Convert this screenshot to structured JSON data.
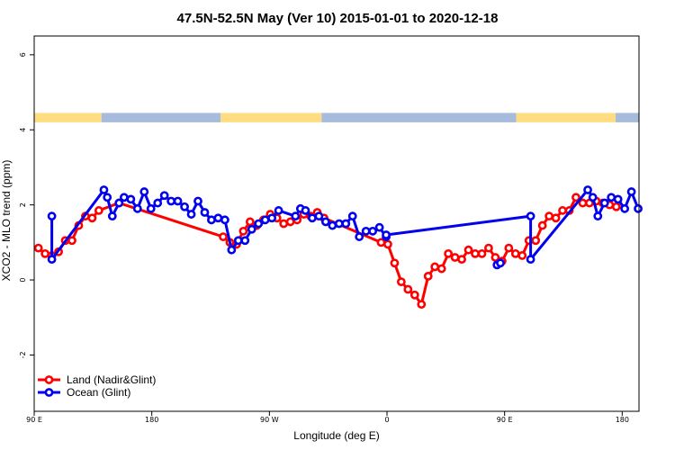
{
  "chart_data": {
    "type": "line",
    "title": "47.5N-52.5N May (Ver 10)   2015-01-01 to 2020-12-18",
    "xlabel": "Longitude (deg E)",
    "ylabel": "XCO2 - MLO trend (ppm)",
    "xlim": [
      90,
      450
    ],
    "ylim": [
      -3.5,
      6.5
    ],
    "x_ticks": [
      {
        "value": 90,
        "label": "90 E"
      },
      {
        "value": 160,
        "label": "180"
      },
      {
        "value": 230,
        "label": "90 W"
      },
      {
        "value": 300,
        "label": "0"
      },
      {
        "value": 370,
        "label": "90 E"
      },
      {
        "value": 440,
        "label": "180"
      }
    ],
    "y_ticks": [
      {
        "value": -2,
        "label": "-2"
      },
      {
        "value": 0,
        "label": "0"
      },
      {
        "value": 2,
        "label": "2"
      },
      {
        "value": 4,
        "label": "4"
      },
      {
        "value": 6,
        "label": "6"
      }
    ],
    "land_ocean_strip": {
      "y_range": [
        4.2,
        4.45
      ],
      "land_color": "#fddc82",
      "ocean_color": "#a7bcdc",
      "land_segments": [
        [
          90,
          130
        ],
        [
          201,
          261
        ],
        [
          377,
          436
        ]
      ],
      "ocean_segments": [
        [
          130,
          201
        ],
        [
          261,
          377
        ],
        [
          436,
          450
        ]
      ]
    },
    "legend": {
      "position": "bottom-left",
      "entries": [
        {
          "label": "Land (Nadir&Glint)",
          "color": "#ff0000"
        },
        {
          "label": "Ocean (Glint)",
          "color": "#0000ee"
        }
      ]
    },
    "series": [
      {
        "name": "Land (Nadir&Glint)",
        "color": "#ff0000",
        "x": [
          92.5,
          96.5,
          100.5,
          104.5,
          108.5,
          112.5,
          116.5,
          120.5,
          124.5,
          128.5,
          140.5,
          202.5,
          206.5,
          210.5,
          214.5,
          218.5,
          222.5,
          226.5,
          230.5,
          234.5,
          238.5,
          242.5,
          246.5,
          250.5,
          254.5,
          258.5,
          262.5,
          296.5,
          300.5,
          304.5,
          308.5,
          312.5,
          316.5,
          320.5,
          324.5,
          328.5,
          332.5,
          336.5,
          340.5,
          344.5,
          348.5,
          352.5,
          356.5,
          360.5,
          364.5,
          368.5,
          372.5,
          376.5,
          380.5,
          384.5,
          388.5,
          392.5,
          396.5,
          400.5,
          404.5,
          408.5,
          412.5,
          416.5,
          420.5,
          424.5,
          428.5,
          432.5,
          436.5
        ],
        "values": [
          0.85,
          0.7,
          0.65,
          0.75,
          1.05,
          1.05,
          1.45,
          1.7,
          1.65,
          1.85,
          2.05,
          1.15,
          1.0,
          0.95,
          1.3,
          1.55,
          1.45,
          1.6,
          1.75,
          1.65,
          1.5,
          1.55,
          1.6,
          1.75,
          1.7,
          1.8,
          1.65,
          1.0,
          0.95,
          0.45,
          -0.05,
          -0.25,
          -0.4,
          -0.65,
          0.1,
          0.35,
          0.3,
          0.7,
          0.6,
          0.55,
          0.8,
          0.7,
          0.7,
          0.85,
          0.6,
          0.5,
          0.85,
          0.7,
          0.65,
          1.05,
          1.05,
          1.45,
          1.7,
          1.65,
          1.85,
          1.85,
          2.2,
          2.05,
          2.05,
          2.1,
          2.05,
          2.0,
          1.95
        ]
      },
      {
        "name": "Ocean (Glint)",
        "color": "#0000ee",
        "x": [
          100.5,
          100.5,
          131.5,
          133.5,
          136.5,
          140.5,
          143.5,
          147.5,
          151.5,
          155.5,
          159.5,
          163.5,
          167.5,
          171.5,
          175.5,
          179.5,
          183.5,
          187.5,
          191.5,
          195.5,
          199.5,
          203.5,
          207.5,
          211.5,
          215.5,
          219.5,
          223.5,
          227.5,
          231.5,
          235.5,
          245.5,
          248.5,
          251.5,
          255.5,
          259.5,
          263.5,
          267.5,
          271.5,
          275.5,
          279.5,
          283.5,
          287.5,
          291.5,
          295.5,
          299.5,
          299.5,
          385.5,
          385.5,
          419.5,
          422.5,
          425.5,
          429.5,
          433.5,
          437.5,
          441.5,
          445.5,
          449.5
        ],
        "values": [
          1.7,
          0.55,
          2.4,
          2.2,
          1.7,
          2.05,
          2.2,
          2.15,
          1.9,
          2.35,
          1.9,
          2.05,
          2.25,
          2.1,
          2.1,
          1.95,
          1.75,
          2.1,
          1.8,
          1.6,
          1.65,
          1.6,
          0.8,
          1.05,
          1.05,
          1.35,
          1.5,
          1.6,
          1.65,
          1.85,
          1.7,
          1.9,
          1.85,
          1.65,
          1.7,
          1.55,
          1.45,
          1.5,
          1.5,
          1.7,
          1.15,
          1.3,
          1.3,
          1.4,
          1.15,
          1.2,
          1.7,
          0.55,
          2.4,
          2.2,
          1.7,
          2.05,
          2.2,
          2.15,
          1.9,
          2.35,
          1.9
        ]
      },
      {
        "name": "Ocean (Glint) b",
        "color": "#0000ee",
        "x": [
          365.5,
          367.5
        ],
        "values": [
          0.4,
          0.45
        ]
      }
    ]
  }
}
